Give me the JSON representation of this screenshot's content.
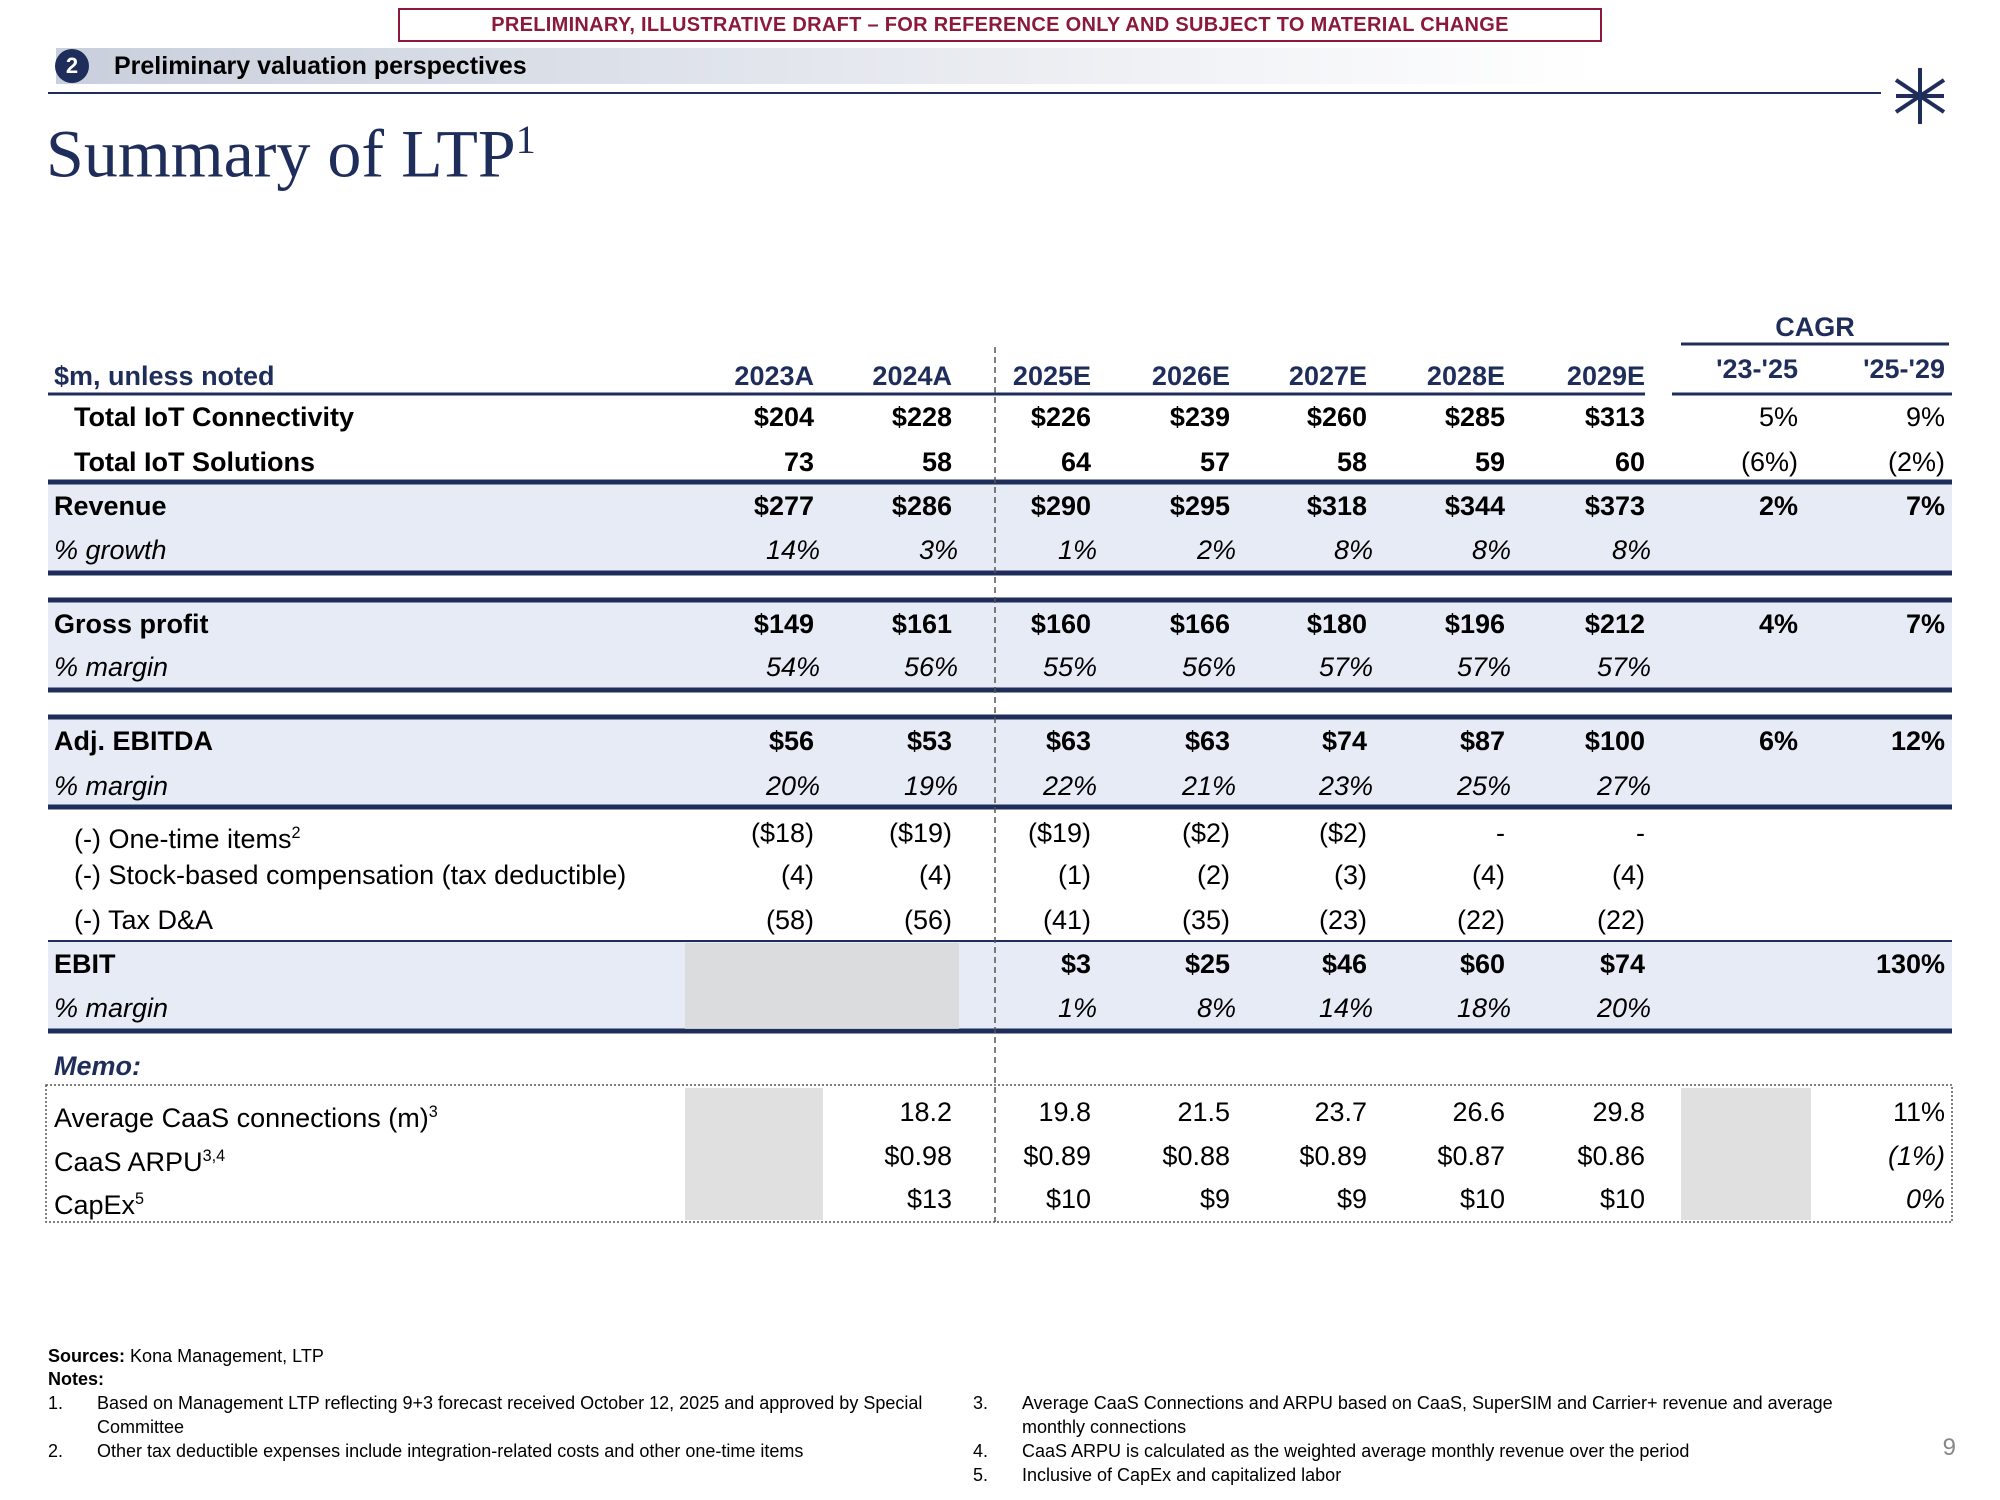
{
  "banner": "PRELIMINARY, ILLUSTRATIVE DRAFT – FOR REFERENCE ONLY AND SUBJECT TO MATERIAL CHANGE",
  "section": {
    "number": "2",
    "title": "Preliminary valuation perspectives"
  },
  "title": {
    "text": "Summary of LTP",
    "note_ref": "1"
  },
  "table": {
    "cagr_label": "CAGR",
    "units": "$m, unless noted",
    "columns": [
      "2023A",
      "2024A",
      "2025E",
      "2026E",
      "2027E",
      "2028E",
      "2029E"
    ],
    "cagr_columns": [
      "'23-'25",
      "'25-'29"
    ],
    "rows": [
      {
        "label": "Total IoT Connectivity",
        "indent": true,
        "style": "bold",
        "values": [
          "$204",
          "$228",
          "$226",
          "$239",
          "$260",
          "$285",
          "$313"
        ],
        "cagr": [
          "5%",
          "9%"
        ],
        "cagr_style": "plain"
      },
      {
        "label": "Total IoT Solutions",
        "indent": true,
        "style": "bold",
        "values": [
          "73",
          "58",
          "64",
          "57",
          "58",
          "59",
          "60"
        ],
        "cagr": [
          "(6%)",
          "(2%)"
        ],
        "cagr_style": "plain"
      },
      {
        "label": "Revenue",
        "style": "bold",
        "values": [
          "$277",
          "$286",
          "$290",
          "$295",
          "$318",
          "$344",
          "$373"
        ],
        "cagr": [
          "2%",
          "7%"
        ],
        "cagr_style": "bold"
      },
      {
        "label": "% growth",
        "style": "italic",
        "values": [
          "14%",
          "3%",
          "1%",
          "2%",
          "8%",
          "8%",
          "8%"
        ],
        "cagr": [
          null,
          null
        ]
      },
      {
        "label": "Gross profit",
        "style": "bold",
        "values": [
          "$149",
          "$161",
          "$160",
          "$166",
          "$180",
          "$196",
          "$212"
        ],
        "cagr": [
          "4%",
          "7%"
        ],
        "cagr_style": "bold"
      },
      {
        "label": "% margin",
        "style": "italic",
        "values": [
          "54%",
          "56%",
          "55%",
          "56%",
          "57%",
          "57%",
          "57%"
        ],
        "cagr": [
          null,
          null
        ]
      },
      {
        "label": "Adj. EBITDA",
        "style": "bold",
        "values": [
          "$56",
          "$53",
          "$63",
          "$63",
          "$74",
          "$87",
          "$100"
        ],
        "cagr": [
          "6%",
          "12%"
        ],
        "cagr_style": "bold"
      },
      {
        "label": "% margin",
        "style": "italic",
        "values": [
          "20%",
          "19%",
          "22%",
          "21%",
          "23%",
          "25%",
          "27%"
        ],
        "cagr": [
          null,
          null
        ]
      },
      {
        "label": "(-) One-time items",
        "note_ref": "2",
        "indent": true,
        "style": "plain",
        "values": [
          "($18)",
          "($19)",
          "($19)",
          "($2)",
          "($2)",
          "-",
          "-"
        ],
        "cagr": [
          null,
          null
        ]
      },
      {
        "label": "(-) Stock-based compensation (tax deductible)",
        "indent": true,
        "style": "plain",
        "values": [
          "(4)",
          "(4)",
          "(1)",
          "(2)",
          "(3)",
          "(4)",
          "(4)"
        ],
        "cagr": [
          null,
          null
        ]
      },
      {
        "label": "(-) Tax D&A",
        "indent": true,
        "style": "plain",
        "values": [
          "(58)",
          "(56)",
          "(41)",
          "(35)",
          "(23)",
          "(22)",
          "(22)"
        ],
        "cagr": [
          null,
          null
        ]
      },
      {
        "label": "EBIT",
        "style": "bold",
        "values": [
          null,
          null,
          "$3",
          "$25",
          "$46",
          "$60",
          "$74"
        ],
        "cagr": [
          null,
          "130%"
        ],
        "cagr_style": "bold"
      },
      {
        "label": "% margin",
        "style": "italic",
        "values": [
          null,
          null,
          "1%",
          "8%",
          "14%",
          "18%",
          "20%"
        ],
        "cagr": [
          null,
          null
        ]
      }
    ],
    "memo_label": "Memo:",
    "memo_rows": [
      {
        "label": "Average CaaS connections (m)",
        "note_ref": "3",
        "values": [
          null,
          "18.2",
          "19.8",
          "21.5",
          "23.7",
          "26.6",
          "29.8"
        ],
        "cagr": [
          null,
          "11%"
        ],
        "cagr_style": "plain"
      },
      {
        "label": "CaaS ARPU",
        "note_ref": "3,4",
        "values": [
          null,
          "$0.98",
          "$0.89",
          "$0.88",
          "$0.89",
          "$0.87",
          "$0.86"
        ],
        "cagr": [
          null,
          "(1%)"
        ],
        "cagr_style": "italic"
      },
      {
        "label": "CapEx",
        "note_ref": "5",
        "values": [
          null,
          "$13",
          "$10",
          "$9",
          "$9",
          "$10",
          "$10"
        ],
        "cagr": [
          null,
          "0%"
        ],
        "cagr_style": "italic"
      }
    ]
  },
  "footer": {
    "sources_label": "Sources:",
    "sources": "Kona Management, LTP",
    "notes_label": "Notes:",
    "notes": [
      {
        "number": "1.",
        "text": "Based on Management LTP reflecting 9+3 forecast received October 12, 2025 and approved by Special Committee"
      },
      {
        "number": "2.",
        "text": "Other tax deductible expenses include integration-related costs and other one-time items"
      },
      {
        "number": "3.",
        "text": "Average CaaS Connections and ARPU based on CaaS, SuperSIM and Carrier+ revenue and average monthly connections"
      },
      {
        "number": "4.",
        "text": "CaaS ARPU is calculated as the weighted average monthly revenue over the period"
      },
      {
        "number": "5.",
        "text": "Inclusive of CapEx and capitalized labor"
      }
    ],
    "page_number": "9"
  }
}
